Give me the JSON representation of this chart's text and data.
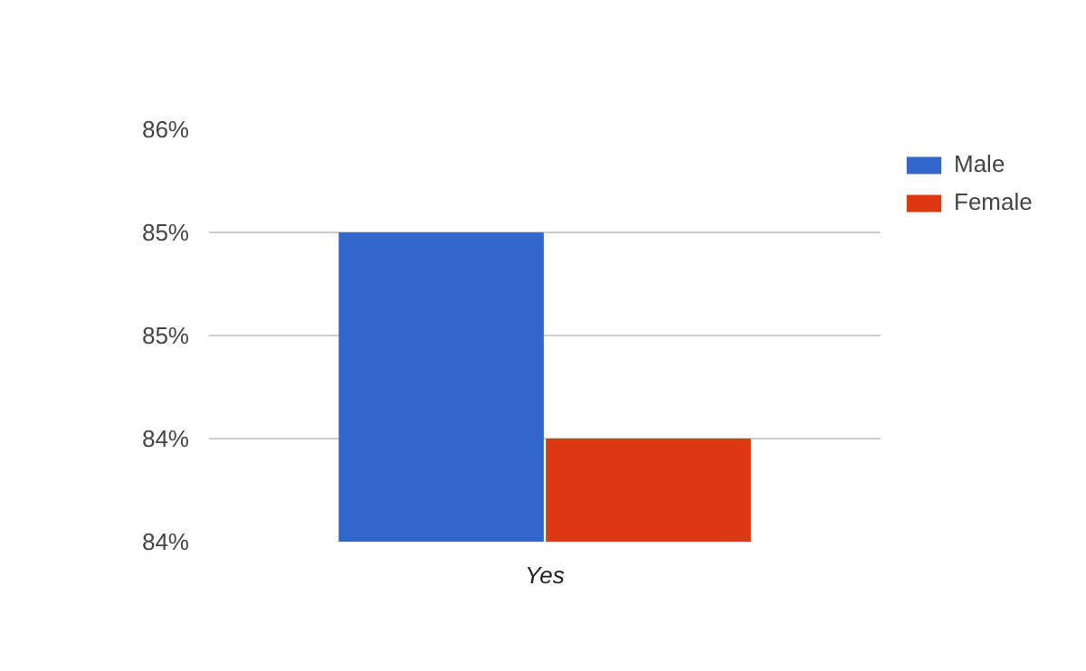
{
  "chart_data": {
    "type": "bar",
    "categories": [
      "Yes"
    ],
    "series": [
      {
        "name": "Male",
        "color": "#3366cc",
        "values": [
          85.2
        ]
      },
      {
        "name": "Female",
        "color": "#dc3912",
        "values": [
          84.4
        ]
      }
    ],
    "ylim": [
      84.0,
      85.6
    ],
    "yticks": [
      {
        "value": 84.0,
        "label": "84%"
      },
      {
        "value": 84.4,
        "label": "84%"
      },
      {
        "value": 84.8,
        "label": "85%"
      },
      {
        "value": 85.2,
        "label": "85%"
      },
      {
        "value": 85.6,
        "label": "86%"
      }
    ],
    "grid": "y",
    "legend": "right"
  }
}
